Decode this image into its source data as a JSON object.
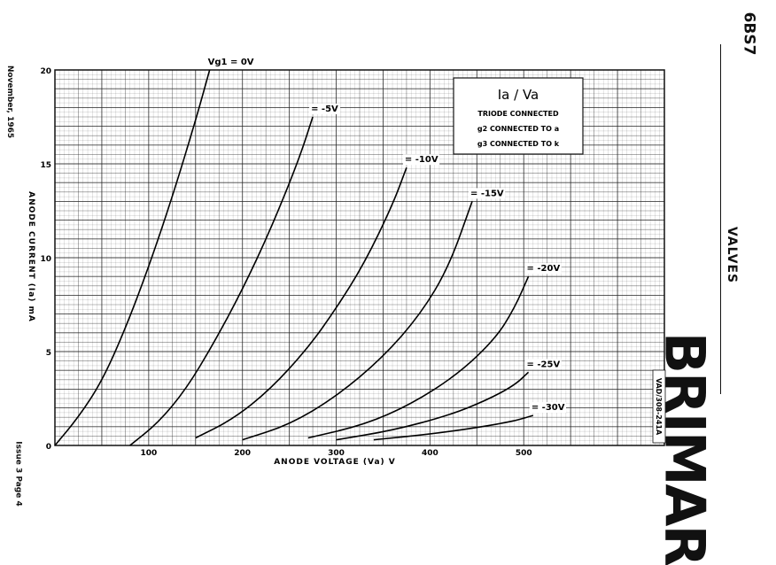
{
  "header": {
    "tube_type": "6BS7",
    "section": "VALVES",
    "brand": "BRIMAR",
    "date": "November, 1965",
    "issue": "Issue 3 Page 4"
  },
  "chart_data": {
    "type": "line",
    "title": "Ia / Va",
    "notes": [
      "TRIODE CONNECTED",
      "g2 CONNECTED TO a",
      "g3 CONNECTED TO k"
    ],
    "drawing_ref": "VAD/308-241A",
    "xlabel": "ANODE VOLTAGE (Va) V",
    "ylabel": "ANODE CURRENT (Ia) mA",
    "xlim": [
      0,
      650
    ],
    "ylim": [
      0,
      20
    ],
    "xticks": [
      100,
      200,
      300,
      400,
      500
    ],
    "yticks": [
      0,
      5,
      10,
      15,
      20
    ],
    "grid": true,
    "series": [
      {
        "name": "Vg1 = 0V",
        "x": [
          0,
          25,
          50,
          75,
          100,
          125,
          150,
          165
        ],
        "y": [
          0,
          1.5,
          3.4,
          6.2,
          9.5,
          13.2,
          17.3,
          20
        ]
      },
      {
        "name": "= -5V",
        "x": [
          80,
          110,
          140,
          170,
          200,
          230,
          260,
          275
        ],
        "y": [
          0,
          1.2,
          3.0,
          5.5,
          8.3,
          11.5,
          15.2,
          17.5
        ]
      },
      {
        "name": "= -10V",
        "x": [
          150,
          190,
          230,
          270,
          300,
          330,
          360,
          375
        ],
        "y": [
          0.4,
          1.4,
          3.0,
          5.2,
          7.3,
          9.7,
          12.8,
          14.8
        ]
      },
      {
        "name": "= -15V",
        "x": [
          200,
          250,
          300,
          350,
          390,
          420,
          445
        ],
        "y": [
          0.3,
          1.1,
          2.6,
          4.7,
          7.0,
          9.5,
          13.0
        ]
      },
      {
        "name": "= -20V",
        "x": [
          270,
          330,
          380,
          430,
          470,
          490,
          505
        ],
        "y": [
          0.4,
          1.1,
          2.2,
          3.8,
          5.7,
          7.3,
          9.0
        ]
      },
      {
        "name": "= -25V",
        "x": [
          300,
          360,
          420,
          460,
          490,
          505
        ],
        "y": [
          0.3,
          0.8,
          1.6,
          2.4,
          3.2,
          3.9
        ]
      },
      {
        "name": "= -30V",
        "x": [
          340,
          400,
          450,
          490,
          510
        ],
        "y": [
          0.3,
          0.6,
          0.95,
          1.3,
          1.6
        ]
      }
    ]
  }
}
